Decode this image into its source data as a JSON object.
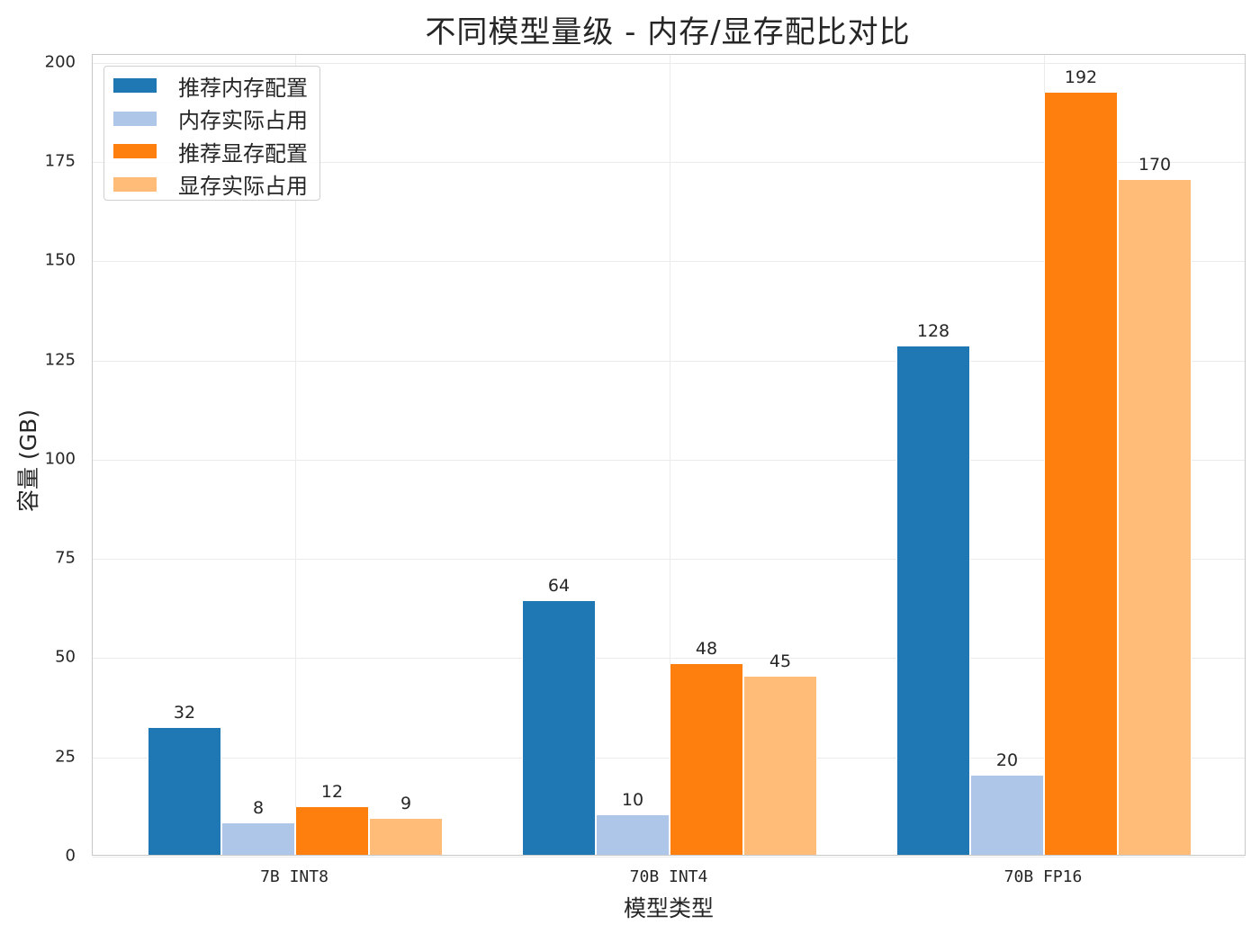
{
  "chart_data": {
    "type": "bar",
    "title": "不同模型量级 - 内存/显存配比对比",
    "xlabel": "模型类型",
    "ylabel": "容量 (GB)",
    "categories": [
      "7B INT8",
      "70B INT4",
      "70B FP16"
    ],
    "series": [
      {
        "name": "推荐内存配置",
        "color": "#1f77b4",
        "values": [
          32,
          64,
          128
        ]
      },
      {
        "name": "内存实际占用",
        "color": "#aec7e8",
        "values": [
          8,
          10,
          20
        ]
      },
      {
        "name": "推荐显存配置",
        "color": "#ff7f0e",
        "values": [
          12,
          48,
          192
        ]
      },
      {
        "name": "显存实际占用",
        "color": "#ffbb78",
        "values": [
          9,
          45,
          170
        ]
      }
    ],
    "ylim": [
      0,
      202
    ],
    "yticks": [
      0,
      25,
      50,
      75,
      100,
      125,
      150,
      175,
      200
    ],
    "grid": true,
    "legend_position": "upper left",
    "data_labels": true
  },
  "labels": {
    "title": "不同模型量级 - 内存/显存配比对比",
    "xlabel": "模型类型",
    "ylabel": "容量 (GB)"
  }
}
